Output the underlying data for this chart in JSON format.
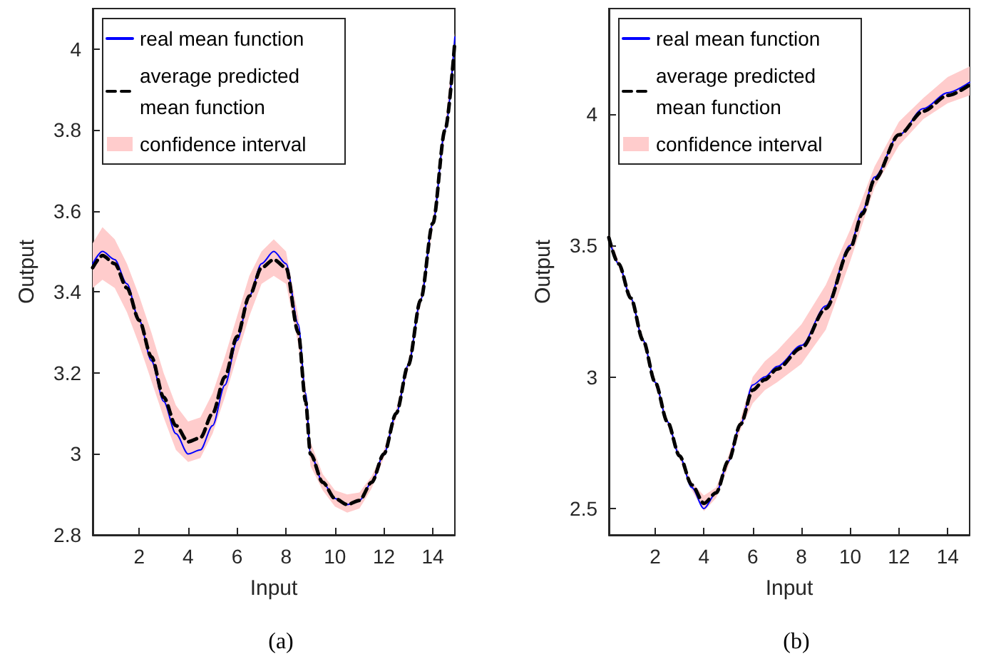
{
  "chart_data": [
    {
      "type": "line",
      "title": "(a)",
      "xlabel": "Input",
      "ylabel": "Output",
      "xlim": [
        0.1,
        14.9
      ],
      "ylim": [
        2.8,
        4.1
      ],
      "xticks": [
        2,
        4,
        6,
        8,
        10,
        12,
        14
      ],
      "yticks": [
        2.8,
        3,
        3.2,
        3.4,
        3.6,
        3.8,
        4
      ],
      "grid": false,
      "legend": "top left",
      "series": [
        {
          "name": "real mean function",
          "color": "#0000ff",
          "line_style": "solid",
          "x": [
            0.1,
            0.5,
            1,
            1.5,
            2,
            2.5,
            3,
            3.5,
            4,
            4.5,
            5,
            5.5,
            6,
            6.5,
            7,
            7.5,
            8,
            8.5,
            8.8,
            9,
            9.5,
            10,
            10.5,
            11,
            11.5,
            12,
            12.5,
            13,
            13.5,
            14,
            14.5,
            14.9
          ],
          "values": [
            3.47,
            3.5,
            3.48,
            3.42,
            3.33,
            3.23,
            3.13,
            3.05,
            3.0,
            3.01,
            3.07,
            3.17,
            3.28,
            3.39,
            3.47,
            3.5,
            3.47,
            3.32,
            3.15,
            3.0,
            2.93,
            2.89,
            2.875,
            2.885,
            2.93,
            3.0,
            3.1,
            3.22,
            3.38,
            3.57,
            3.8,
            4.03
          ]
        },
        {
          "name": "average predicted mean function",
          "color": "#000000",
          "line_style": "dashed",
          "x": [
            0.1,
            0.5,
            1,
            1.5,
            2,
            2.5,
            3,
            3.5,
            4,
            4.5,
            5,
            5.5,
            6,
            6.5,
            7,
            7.5,
            8,
            8.5,
            8.8,
            9,
            9.5,
            10,
            10.5,
            11,
            11.5,
            12,
            12.5,
            13,
            13.5,
            14,
            14.5,
            14.9
          ],
          "values": [
            3.46,
            3.49,
            3.47,
            3.41,
            3.33,
            3.24,
            3.14,
            3.07,
            3.03,
            3.04,
            3.1,
            3.19,
            3.29,
            3.39,
            3.46,
            3.48,
            3.46,
            3.3,
            3.13,
            3.0,
            2.93,
            2.89,
            2.875,
            2.885,
            2.93,
            3.0,
            3.1,
            3.22,
            3.38,
            3.57,
            3.8,
            4.02
          ]
        },
        {
          "name": "confidence interval",
          "type": "area",
          "color": "#ffcccc",
          "x": [
            0.1,
            0.5,
            1,
            1.5,
            2,
            2.5,
            3,
            3.5,
            4,
            4.5,
            5,
            5.5,
            6,
            6.5,
            7,
            7.5,
            8,
            8.5,
            8.8,
            9,
            9.5,
            10,
            10.5,
            11,
            11.5,
            12,
            12.5,
            13,
            13.5,
            14,
            14.5,
            14.9
          ],
          "values": [
            null,
            null,
            null,
            null,
            null,
            null,
            null,
            null,
            null,
            null,
            null,
            null,
            null,
            null,
            null,
            null,
            null,
            null,
            null,
            null,
            null,
            null,
            null,
            null,
            null,
            null,
            null,
            null,
            null,
            null,
            null,
            null
          ],
          "lower": [
            3.41,
            3.43,
            3.41,
            3.35,
            3.27,
            3.18,
            3.09,
            3.01,
            2.98,
            2.99,
            3.05,
            3.14,
            3.24,
            3.34,
            3.42,
            3.44,
            3.42,
            3.27,
            3.1,
            2.97,
            2.91,
            2.87,
            2.855,
            2.865,
            2.915,
            2.99,
            3.09,
            3.21,
            3.37,
            3.56,
            3.79,
            4.01
          ],
          "upper": [
            3.52,
            3.56,
            3.53,
            3.47,
            3.39,
            3.3,
            3.2,
            3.12,
            3.08,
            3.09,
            3.15,
            3.24,
            3.34,
            3.44,
            3.5,
            3.53,
            3.5,
            3.34,
            3.16,
            3.03,
            2.95,
            2.91,
            2.9,
            2.905,
            2.945,
            3.01,
            3.11,
            3.23,
            3.39,
            3.58,
            3.81,
            4.04
          ]
        }
      ]
    },
    {
      "type": "line",
      "title": "(b)",
      "xlabel": "Input",
      "ylabel": "Output",
      "xlim": [
        0.1,
        14.9
      ],
      "ylim": [
        2.4,
        4.4
      ],
      "xticks": [
        2,
        4,
        6,
        8,
        10,
        12,
        14
      ],
      "yticks": [
        2.5,
        3,
        3.5,
        4
      ],
      "grid": false,
      "legend": "top left",
      "series": [
        {
          "name": "real mean function",
          "color": "#0000ff",
          "line_style": "solid",
          "x": [
            0.1,
            0.5,
            1,
            1.5,
            2,
            2.5,
            3,
            3.5,
            4,
            4.5,
            5,
            5.5,
            6,
            6.5,
            7,
            8,
            9,
            10,
            10.5,
            11,
            12,
            13,
            14,
            14.9
          ],
          "values": [
            3.53,
            3.43,
            3.3,
            3.14,
            2.98,
            2.83,
            2.7,
            2.58,
            2.5,
            2.56,
            2.68,
            2.82,
            2.97,
            3.0,
            3.04,
            3.12,
            3.27,
            3.5,
            3.63,
            3.76,
            3.92,
            4.02,
            4.08,
            4.12
          ]
        },
        {
          "name": "average predicted mean function",
          "color": "#000000",
          "line_style": "dashed",
          "x": [
            0.1,
            0.5,
            1,
            1.5,
            2,
            2.5,
            3,
            3.5,
            4,
            4.5,
            5,
            5.5,
            6,
            6.5,
            7,
            8,
            9,
            10,
            10.5,
            11,
            12,
            13,
            14,
            14.9
          ],
          "values": [
            3.53,
            3.43,
            3.3,
            3.14,
            2.98,
            2.83,
            2.7,
            2.59,
            2.52,
            2.56,
            2.68,
            2.82,
            2.95,
            2.99,
            3.03,
            3.11,
            3.26,
            3.49,
            3.62,
            3.75,
            3.92,
            4.01,
            4.07,
            4.11
          ]
        },
        {
          "name": "confidence interval",
          "type": "area",
          "color": "#ffcccc",
          "x": [
            0.1,
            0.5,
            1,
            1.5,
            2,
            2.5,
            3,
            3.5,
            4,
            4.5,
            5,
            5.5,
            6,
            6.5,
            7,
            8,
            9,
            10,
            10.5,
            11,
            12,
            13,
            14,
            14.9
          ],
          "values": [
            null,
            null,
            null,
            null,
            null,
            null,
            null,
            null,
            null,
            null,
            null,
            null,
            null,
            null,
            null,
            null,
            null,
            null,
            null,
            null,
            null,
            null,
            null,
            null
          ],
          "lower": [
            3.52,
            3.42,
            3.29,
            3.13,
            2.97,
            2.82,
            2.69,
            2.57,
            2.49,
            2.54,
            2.66,
            2.8,
            2.9,
            2.95,
            2.98,
            3.05,
            3.18,
            3.44,
            3.58,
            3.72,
            3.88,
            3.98,
            4.04,
            4.07
          ],
          "upper": [
            3.54,
            3.44,
            3.31,
            3.15,
            2.99,
            2.84,
            2.71,
            2.6,
            2.55,
            2.58,
            2.7,
            2.84,
            3.0,
            3.06,
            3.1,
            3.2,
            3.35,
            3.56,
            3.68,
            3.8,
            3.97,
            4.06,
            4.14,
            4.18
          ]
        }
      ]
    }
  ]
}
